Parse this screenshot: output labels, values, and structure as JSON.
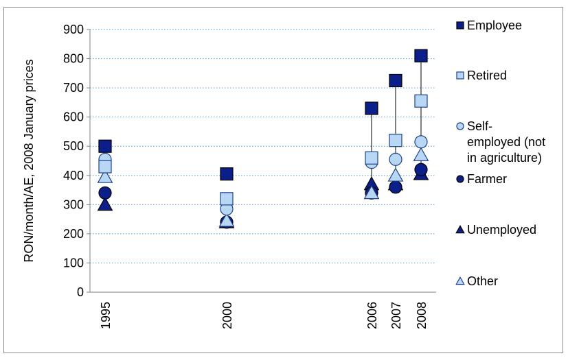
{
  "chart_data": {
    "type": "scatter",
    "title": "",
    "xlabel": "",
    "ylabel": "RON/month/AE, 2008 January prices",
    "ylim": [
      0,
      900
    ],
    "yticks": [
      0,
      100,
      200,
      300,
      400,
      500,
      600,
      700,
      800,
      900
    ],
    "categories": [
      "1995",
      "2000",
      "2006",
      "2007",
      "2008"
    ],
    "grid": "horizontal dotted",
    "legend_position": "right",
    "series": [
      {
        "name": "Employee",
        "marker": "square",
        "fill": "#0b1f8a",
        "stroke": "#000000",
        "values": [
          500,
          405,
          630,
          725,
          810
        ]
      },
      {
        "name": "Retired",
        "marker": "square",
        "fill": "#b7d7f4",
        "stroke": "#1f3f8a",
        "values": [
          430,
          320,
          460,
          520,
          655
        ]
      },
      {
        "name": "Self-employed (not in agriculture)",
        "legend_lines": [
          "Self-",
          "employed (not",
          "in agriculture)"
        ],
        "marker": "circle",
        "fill": "#b7d7f4",
        "stroke": "#1f3f8a",
        "values": [
          455,
          285,
          445,
          455,
          515
        ]
      },
      {
        "name": "Farmer",
        "marker": "circle",
        "fill": "#0b1f8a",
        "stroke": "#000000",
        "values": [
          340,
          240,
          340,
          360,
          420
        ]
      },
      {
        "name": "Unemployed",
        "marker": "triangle",
        "fill": "#0b1f8a",
        "stroke": "#000000",
        "values": [
          300,
          240,
          370,
          370,
          405
        ]
      },
      {
        "name": "Other",
        "marker": "triangle",
        "fill": "#b7d7f4",
        "stroke": "#1f3f8a",
        "values": [
          395,
          245,
          340,
          400,
          470
        ]
      }
    ],
    "connector_lines": "vertical line from Employee to lowest value at 2006, 2007, 2008"
  }
}
